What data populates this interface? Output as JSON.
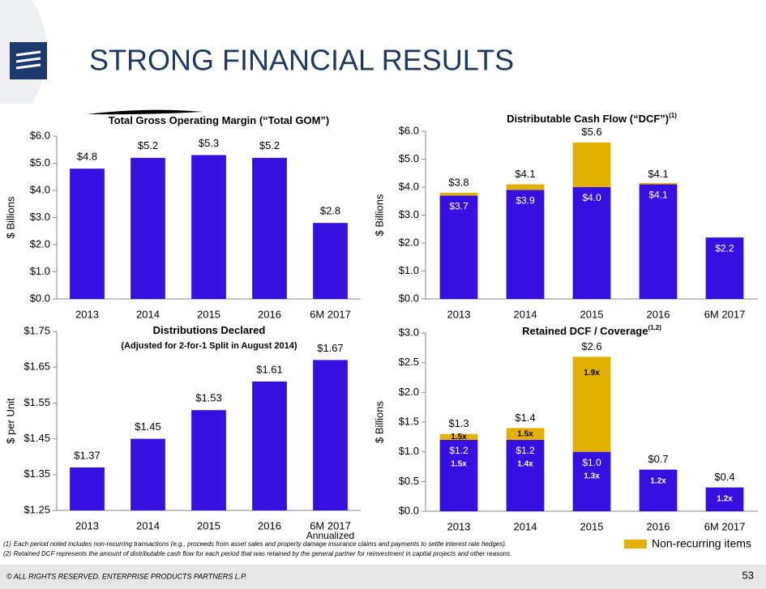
{
  "title": "STRONG FINANCIAL RESULTS",
  "chart_data": [
    {
      "type": "bar",
      "title": "Total Gross Operating Margin (“Total GOM”)",
      "y_label": "$ Billions",
      "categories": [
        "2013",
        "2014",
        "2015",
        "2016",
        "6M 2017"
      ],
      "values": [
        4.8,
        5.2,
        5.3,
        5.2,
        2.8
      ],
      "value_labels": [
        "$4.8",
        "$5.2",
        "$5.3",
        "$5.2",
        "$2.8"
      ],
      "color": "#3510e0",
      "ylim": [
        0,
        6
      ],
      "yticks": [
        {
          "value": 0,
          "label": "$0.0"
        },
        {
          "value": 1,
          "label": "$1.0"
        },
        {
          "value": 2,
          "label": "$2.0"
        },
        {
          "value": 3,
          "label": "$3.0"
        },
        {
          "value": 4,
          "label": "$4.0"
        },
        {
          "value": 5,
          "label": "$5.0"
        },
        {
          "value": 6,
          "label": "$6.0"
        }
      ]
    },
    {
      "type": "stacked_bar",
      "title": "Distributable Cash Flow (“DCF”)",
      "title_note": "(1)",
      "y_label": "$ Billions",
      "categories": [
        "2013",
        "2014",
        "2015",
        "2016",
        "6M 2017"
      ],
      "series": [
        {
          "color": "#3510e0",
          "values": [
            3.7,
            3.9,
            4.0,
            4.1,
            2.2
          ],
          "value_labels": [
            "$3.7",
            "$3.9",
            "$4.0",
            "$4.1",
            "$2.2"
          ]
        },
        {
          "name": "Non-recurring items",
          "color": "#e2b100",
          "values": [
            0.1,
            0.2,
            1.6,
            0.05,
            0
          ]
        }
      ],
      "totals": [
        3.8,
        4.1,
        5.6,
        4.1,
        null
      ],
      "total_labels": [
        "$3.8",
        "$4.1",
        "$5.6",
        "$4.1",
        null
      ],
      "ylim": [
        0,
        6
      ],
      "yticks": [
        {
          "value": 0,
          "label": "$0.0"
        },
        {
          "value": 1,
          "label": "$1.0"
        },
        {
          "value": 2,
          "label": "$2.0"
        },
        {
          "value": 3,
          "label": "$3.0"
        },
        {
          "value": 4,
          "label": "$4.0"
        },
        {
          "value": 5,
          "label": "$5.0"
        },
        {
          "value": 6,
          "label": "$6.0"
        }
      ]
    },
    {
      "type": "bar",
      "title": "Distributions Declared",
      "subtitle": "(Adjusted for 2-for-1 Split in August 2014)",
      "y_label": "$ per Unit",
      "categories": [
        "2013",
        "2014",
        "2015",
        "2016",
        "6M 2017"
      ],
      "category_note": "Annualized",
      "values": [
        1.37,
        1.45,
        1.53,
        1.61,
        1.67
      ],
      "value_labels": [
        "$1.37",
        "$1.45",
        "$1.53",
        "$1.61",
        "$1.67"
      ],
      "color": "#3510e0",
      "ylim": [
        1.25,
        1.75
      ],
      "yticks": [
        {
          "value": 1.25,
          "label": "$1.25"
        },
        {
          "value": 1.35,
          "label": "$1.35"
        },
        {
          "value": 1.45,
          "label": "$1.45"
        },
        {
          "value": 1.55,
          "label": "$1.55"
        },
        {
          "value": 1.65,
          "label": "$1.65"
        },
        {
          "value": 1.75,
          "label": "$1.75"
        }
      ]
    },
    {
      "type": "stacked_bar",
      "title": "Retained DCF / Coverage",
      "title_note": "(1,2)",
      "y_label": "$ Billions",
      "categories": [
        "2013",
        "2014",
        "2015",
        "2016",
        "6M 2017"
      ],
      "series": [
        {
          "color": "#3510e0",
          "values": [
            1.2,
            1.2,
            1.0,
            0.7,
            0.4
          ],
          "value_labels": [
            "$1.2",
            "$1.2",
            "$1.0",
            null,
            null
          ],
          "coverage_labels": [
            "1.5x",
            "1.4x",
            "1.3x",
            "1.2x",
            "1.2x"
          ]
        },
        {
          "color": "#e2b100",
          "values": [
            0.1,
            0.2,
            1.6,
            0,
            0
          ],
          "coverage_labels": [
            "1.5x",
            "1.5x",
            "1.9x",
            null,
            null
          ]
        }
      ],
      "totals": [
        1.3,
        1.4,
        2.6,
        0.7,
        0.4
      ],
      "total_labels": [
        "$1.3",
        "$1.4",
        "$2.6",
        "$0.7",
        "$0.4"
      ],
      "ylim": [
        0,
        3
      ],
      "yticks": [
        {
          "value": 0,
          "label": "$0.0"
        },
        {
          "value": 0.5,
          "label": "$0.5"
        },
        {
          "value": 1,
          "label": "$1.0"
        },
        {
          "value": 1.5,
          "label": "$1.5"
        },
        {
          "value": 2,
          "label": "$2.0"
        },
        {
          "value": 2.5,
          "label": "$2.5"
        },
        {
          "value": 3,
          "label": "$3.0"
        }
      ]
    }
  ],
  "footnotes": [
    {
      "marker": "(1)",
      "text": "Each period noted includes non-recurring transactions (e.g., proceeds from asset sales and property damage insurance claims and payments to settle interest rate hedges)."
    },
    {
      "marker": "(2)",
      "text": "Retained DCF represents the amount of distributable cash flow for each period that was retained by the general partner for reinvestment in capital projects and other reasons."
    }
  ],
  "copyright": "© ALL RIGHTS RESERVED. ENTERPRISE PRODUCTS PARTNERS L.P.",
  "page_number": "53"
}
